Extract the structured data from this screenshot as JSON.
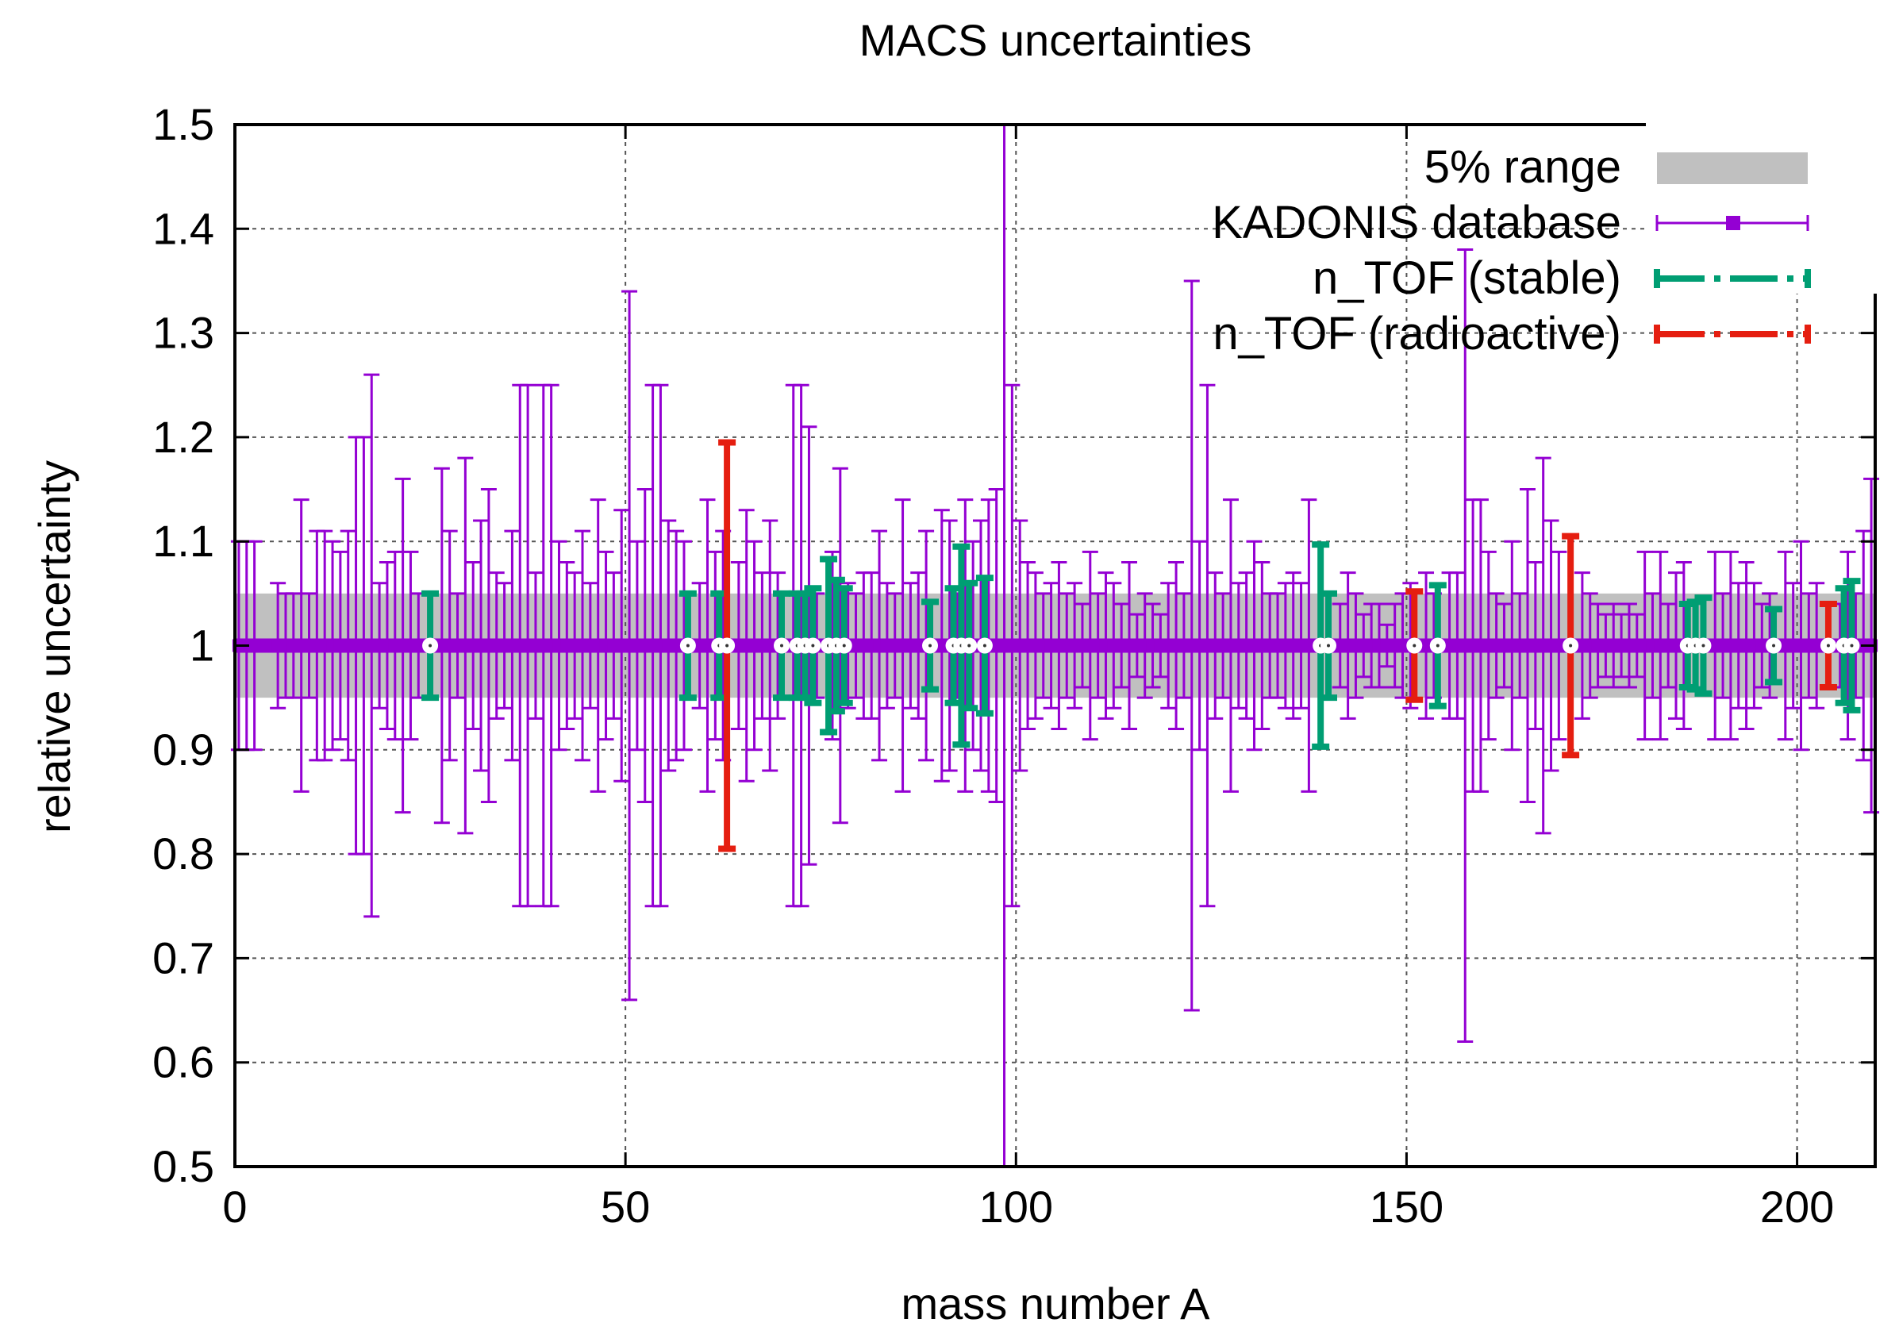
{
  "chart_data": {
    "type": "scatter",
    "title": "MACS uncertainties",
    "xlabel": "mass number A",
    "ylabel": "relative uncertainty",
    "xlim": [
      0,
      210
    ],
    "ylim": [
      0.5,
      1.5
    ],
    "grid": true,
    "legend_position": "top-right",
    "x_ticks": [
      0,
      50,
      100,
      150,
      200
    ],
    "y_ticks": [
      0.5,
      0.6,
      0.7,
      0.8,
      0.9,
      1,
      1.1,
      1.2,
      1.3,
      1.4,
      1.5
    ],
    "band": {
      "name": "5% range",
      "y_low": 0.95,
      "y_high": 1.05,
      "color": "#c0c0c0"
    },
    "series": [
      {
        "name": "KADONIS database",
        "color": "#9400d3",
        "style": "errorbars",
        "points": [
          {
            "x": 0.5,
            "err": 0.1
          },
          {
            "x": 1.5,
            "err": 0.1
          },
          {
            "x": 2.5,
            "err": 0.1
          },
          {
            "x": 5.5,
            "err": 0.06
          },
          {
            "x": 6.5,
            "err": 0.05
          },
          {
            "x": 7.5,
            "err": 0.05
          },
          {
            "x": 8.5,
            "err": 0.14
          },
          {
            "x": 9.5,
            "err": 0.05
          },
          {
            "x": 10.5,
            "err": 0.11
          },
          {
            "x": 11.5,
            "err": 0.11
          },
          {
            "x": 12.5,
            "err": 0.1
          },
          {
            "x": 13.5,
            "err": 0.09
          },
          {
            "x": 14.5,
            "err": 0.11
          },
          {
            "x": 15.5,
            "err": 0.2
          },
          {
            "x": 16.5,
            "err": 0.2
          },
          {
            "x": 17.5,
            "err": 0.26
          },
          {
            "x": 18.5,
            "err": 0.06
          },
          {
            "x": 19.5,
            "err": 0.08
          },
          {
            "x": 20.5,
            "err": 0.09
          },
          {
            "x": 21.5,
            "err": 0.16
          },
          {
            "x": 22.5,
            "err": 0.09
          },
          {
            "x": 23.5,
            "err": 0.05
          },
          {
            "x": 26.5,
            "err": 0.17
          },
          {
            "x": 27.5,
            "err": 0.11
          },
          {
            "x": 28.5,
            "err": 0.05
          },
          {
            "x": 29.5,
            "err": 0.18
          },
          {
            "x": 30.5,
            "err": 0.08
          },
          {
            "x": 31.5,
            "err": 0.12
          },
          {
            "x": 32.5,
            "err": 0.15
          },
          {
            "x": 33.5,
            "err": 0.07
          },
          {
            "x": 34.5,
            "err": 0.06
          },
          {
            "x": 35.5,
            "err": 0.11
          },
          {
            "x": 36.5,
            "err": 0.25
          },
          {
            "x": 37.5,
            "err": 0.25
          },
          {
            "x": 38.5,
            "err": 0.07
          },
          {
            "x": 39.5,
            "err": 0.25
          },
          {
            "x": 40.5,
            "err": 0.25
          },
          {
            "x": 41.5,
            "err": 0.1
          },
          {
            "x": 42.5,
            "err": 0.08
          },
          {
            "x": 43.5,
            "err": 0.07
          },
          {
            "x": 44.5,
            "err": 0.11
          },
          {
            "x": 45.5,
            "err": 0.06
          },
          {
            "x": 46.5,
            "err": 0.14
          },
          {
            "x": 47.5,
            "err": 0.09
          },
          {
            "x": 48.5,
            "err": 0.07
          },
          {
            "x": 49.5,
            "err": 0.13
          },
          {
            "x": 50.5,
            "err": 0.34
          },
          {
            "x": 51.5,
            "err": 0.1
          },
          {
            "x": 52.5,
            "err": 0.15
          },
          {
            "x": 53.5,
            "err": 0.25
          },
          {
            "x": 54.5,
            "err": 0.25
          },
          {
            "x": 55.5,
            "err": 0.12
          },
          {
            "x": 56.5,
            "err": 0.11
          },
          {
            "x": 57.5,
            "err": 0.1
          },
          {
            "x": 59.5,
            "err": 0.06
          },
          {
            "x": 60.5,
            "err": 0.14
          },
          {
            "x": 61.5,
            "err": 0.09
          },
          {
            "x": 62.5,
            "err": 0.11
          },
          {
            "x": 64.5,
            "err": 0.08
          },
          {
            "x": 65.5,
            "err": 0.13
          },
          {
            "x": 66.5,
            "err": 0.1
          },
          {
            "x": 67.5,
            "err": 0.07
          },
          {
            "x": 68.5,
            "err": 0.12
          },
          {
            "x": 69.5,
            "err": 0.07
          },
          {
            "x": 71.5,
            "err": 0.25
          },
          {
            "x": 72.5,
            "err": 0.25
          },
          {
            "x": 73.5,
            "err": 0.21
          },
          {
            "x": 74.5,
            "err": 0.05
          },
          {
            "x": 76.5,
            "err": 0.09
          },
          {
            "x": 77.5,
            "err": 0.17
          },
          {
            "x": 78.5,
            "err": 0.06
          },
          {
            "x": 79.5,
            "err": 0.05
          },
          {
            "x": 80.5,
            "err": 0.07
          },
          {
            "x": 81.5,
            "err": 0.07
          },
          {
            "x": 82.5,
            "err": 0.11
          },
          {
            "x": 83.5,
            "err": 0.06
          },
          {
            "x": 84.5,
            "err": 0.05
          },
          {
            "x": 85.5,
            "err": 0.14
          },
          {
            "x": 86.5,
            "err": 0.06
          },
          {
            "x": 87.5,
            "err": 0.07
          },
          {
            "x": 88.5,
            "err": 0.11
          },
          {
            "x": 90.5,
            "err": 0.13
          },
          {
            "x": 91.5,
            "err": 0.12
          },
          {
            "x": 92.5,
            "err": 0.05
          },
          {
            "x": 93.5,
            "err": 0.14
          },
          {
            "x": 94.5,
            "err": 0.1
          },
          {
            "x": 95.5,
            "err": 0.12
          },
          {
            "x": 96.5,
            "err": 0.14
          },
          {
            "x": 97.5,
            "err": 0.15
          },
          {
            "x": 98.5,
            "err": 0.5
          },
          {
            "x": 99.5,
            "err": 0.25
          },
          {
            "x": 100.5,
            "err": 0.12
          },
          {
            "x": 101.5,
            "err": 0.08
          },
          {
            "x": 102.5,
            "err": 0.07
          },
          {
            "x": 103.5,
            "err": 0.05
          },
          {
            "x": 104.5,
            "err": 0.06
          },
          {
            "x": 105.5,
            "err": 0.08
          },
          {
            "x": 106.5,
            "err": 0.05
          },
          {
            "x": 107.5,
            "err": 0.06
          },
          {
            "x": 108.5,
            "err": 0.04
          },
          {
            "x": 109.5,
            "err": 0.09
          },
          {
            "x": 110.5,
            "err": 0.05
          },
          {
            "x": 111.5,
            "err": 0.07
          },
          {
            "x": 112.5,
            "err": 0.06
          },
          {
            "x": 113.5,
            "err": 0.04
          },
          {
            "x": 114.5,
            "err": 0.08
          },
          {
            "x": 115.5,
            "err": 0.03
          },
          {
            "x": 116.5,
            "err": 0.05
          },
          {
            "x": 117.5,
            "err": 0.04
          },
          {
            "x": 118.5,
            "err": 0.03
          },
          {
            "x": 119.5,
            "err": 0.06
          },
          {
            "x": 120.5,
            "err": 0.08
          },
          {
            "x": 121.5,
            "err": 0.05
          },
          {
            "x": 122.5,
            "err": 0.35
          },
          {
            "x": 123.5,
            "err": 0.1
          },
          {
            "x": 124.5,
            "err": 0.25
          },
          {
            "x": 125.5,
            "err": 0.07
          },
          {
            "x": 126.5,
            "err": 0.05
          },
          {
            "x": 127.5,
            "err": 0.14
          },
          {
            "x": 128.5,
            "err": 0.06
          },
          {
            "x": 129.5,
            "err": 0.07
          },
          {
            "x": 130.5,
            "err": 0.1
          },
          {
            "x": 131.5,
            "err": 0.08
          },
          {
            "x": 132.5,
            "err": 0.05
          },
          {
            "x": 133.5,
            "err": 0.05
          },
          {
            "x": 134.5,
            "err": 0.06
          },
          {
            "x": 135.5,
            "err": 0.07
          },
          {
            "x": 136.5,
            "err": 0.06
          },
          {
            "x": 137.5,
            "err": 0.14
          },
          {
            "x": 141.5,
            "err": 0.04
          },
          {
            "x": 142.5,
            "err": 0.07
          },
          {
            "x": 143.5,
            "err": 0.05
          },
          {
            "x": 144.5,
            "err": 0.03
          },
          {
            "x": 145.5,
            "err": 0.04
          },
          {
            "x": 146.5,
            "err": 0.04
          },
          {
            "x": 147.5,
            "err": 0.02
          },
          {
            "x": 148.5,
            "err": 0.04
          },
          {
            "x": 149.5,
            "err": 0.05
          },
          {
            "x": 150.5,
            "err": 0.06
          },
          {
            "x": 152.5,
            "err": 0.07
          },
          {
            "x": 153.5,
            "err": 0.05
          },
          {
            "x": 155.5,
            "err": 0.07
          },
          {
            "x": 156.5,
            "err": 0.07
          },
          {
            "x": 157.5,
            "err": 0.38
          },
          {
            "x": 158.5,
            "err": 0.14
          },
          {
            "x": 159.5,
            "err": 0.14
          },
          {
            "x": 160.5,
            "err": 0.09
          },
          {
            "x": 161.5,
            "err": 0.05
          },
          {
            "x": 162.5,
            "err": 0.04
          },
          {
            "x": 163.5,
            "err": 0.1
          },
          {
            "x": 164.5,
            "err": 0.05
          },
          {
            "x": 165.5,
            "err": 0.15
          },
          {
            "x": 166.5,
            "err": 0.08
          },
          {
            "x": 167.5,
            "err": 0.18
          },
          {
            "x": 168.5,
            "err": 0.12
          },
          {
            "x": 169.5,
            "err": 0.09
          },
          {
            "x": 172.5,
            "err": 0.07
          },
          {
            "x": 173.5,
            "err": 0.05
          },
          {
            "x": 174.5,
            "err": 0.04
          },
          {
            "x": 175.5,
            "err": 0.03
          },
          {
            "x": 176.5,
            "err": 0.04
          },
          {
            "x": 177.5,
            "err": 0.03
          },
          {
            "x": 178.5,
            "err": 0.04
          },
          {
            "x": 179.5,
            "err": 0.03
          },
          {
            "x": 180.5,
            "err": 0.09
          },
          {
            "x": 181.5,
            "err": 0.05
          },
          {
            "x": 182.5,
            "err": 0.09
          },
          {
            "x": 183.5,
            "err": 0.04
          },
          {
            "x": 184.5,
            "err": 0.07
          },
          {
            "x": 185.5,
            "err": 0.08
          },
          {
            "x": 189.5,
            "err": 0.09
          },
          {
            "x": 190.5,
            "err": 0.05
          },
          {
            "x": 191.5,
            "err": 0.09
          },
          {
            "x": 192.5,
            "err": 0.06
          },
          {
            "x": 193.5,
            "err": 0.08
          },
          {
            "x": 194.5,
            "err": 0.06
          },
          {
            "x": 195.5,
            "err": 0.04
          },
          {
            "x": 196.5,
            "err": 0.05
          },
          {
            "x": 198.5,
            "err": 0.09
          },
          {
            "x": 199.5,
            "err": 0.06
          },
          {
            "x": 200.5,
            "err": 0.1
          },
          {
            "x": 201.5,
            "err": 0.05
          },
          {
            "x": 202.5,
            "err": 0.06
          },
          {
            "x": 205.5,
            "err": 0.04
          },
          {
            "x": 206.5,
            "err": 0.09
          },
          {
            "x": 207.5,
            "err": 0.05
          },
          {
            "x": 208.5,
            "err": 0.11
          },
          {
            "x": 209.5,
            "err": 0.16
          }
        ]
      },
      {
        "name": "n_TOF (stable)",
        "color": "#009e73",
        "style": "thick-errorbars",
        "points": [
          {
            "x": 25,
            "err": 0.05
          },
          {
            "x": 58,
            "err": 0.05
          },
          {
            "x": 62,
            "err": 0.05
          },
          {
            "x": 70,
            "err": 0.05
          },
          {
            "x": 72,
            "err": 0.05
          },
          {
            "x": 73,
            "err": 0.05
          },
          {
            "x": 74,
            "err": 0.055
          },
          {
            "x": 76,
            "err": 0.083
          },
          {
            "x": 77,
            "err": 0.063
          },
          {
            "x": 78,
            "err": 0.055
          },
          {
            "x": 89,
            "err": 0.042
          },
          {
            "x": 92,
            "err": 0.055
          },
          {
            "x": 93,
            "err": 0.095
          },
          {
            "x": 94,
            "err": 0.06
          },
          {
            "x": 96,
            "err": 0.065
          },
          {
            "x": 139,
            "err": 0.097
          },
          {
            "x": 140,
            "err": 0.05
          },
          {
            "x": 154,
            "err": 0.058
          },
          {
            "x": 186,
            "err": 0.04
          },
          {
            "x": 187,
            "err": 0.042
          },
          {
            "x": 188,
            "err": 0.046
          },
          {
            "x": 197,
            "err": 0.035
          },
          {
            "x": 206,
            "err": 0.055
          },
          {
            "x": 207,
            "err": 0.062
          }
        ]
      },
      {
        "name": "n_TOF (radioactive)",
        "color": "#e51e10",
        "style": "thick-errorbars",
        "points": [
          {
            "x": 63,
            "err": 0.195
          },
          {
            "x": 151,
            "err": 0.052
          },
          {
            "x": 171,
            "err": 0.105
          },
          {
            "x": 204,
            "err": 0.04
          }
        ]
      }
    ]
  }
}
